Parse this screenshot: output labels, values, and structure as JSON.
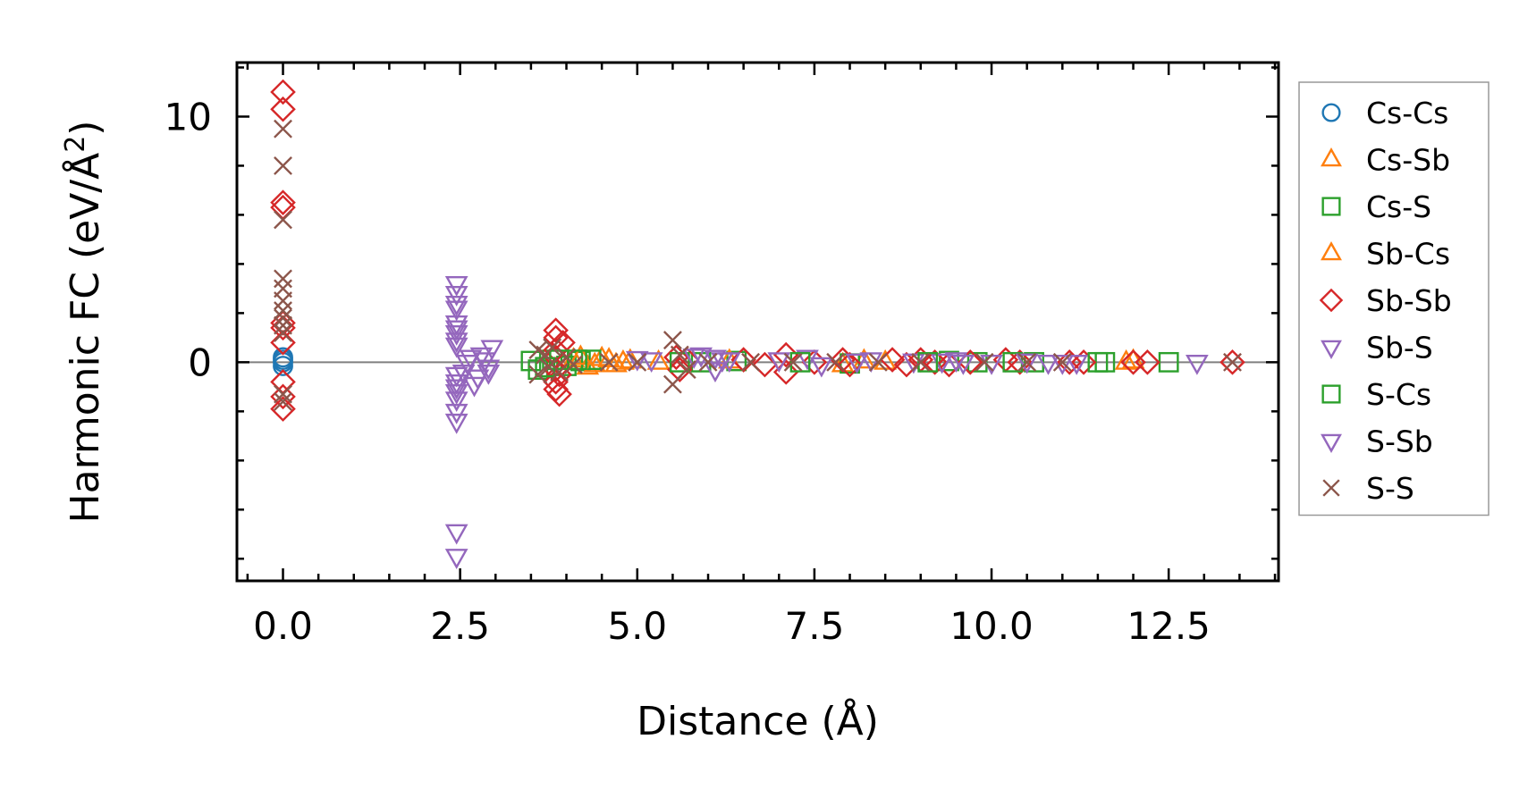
{
  "chart_data": {
    "type": "scatter",
    "title": "",
    "xlabel": "Distance (Å)",
    "ylabel": "Harmonic FC (eV/Å²)",
    "ylabel_main": "Harmonic FC (eV/Å",
    "ylabel_sup": "2",
    "ylabel_close": ")",
    "xlim": [
      -0.65,
      14.05
    ],
    "ylim": [
      -8.9,
      12.2
    ],
    "xticks": [
      0.0,
      2.5,
      5.0,
      7.5,
      10.0,
      12.5
    ],
    "xtick_labels": [
      "0.0",
      "2.5",
      "5.0",
      "7.5",
      "10.0",
      "12.5"
    ],
    "yticks": [
      0,
      10
    ],
    "ytick_labels": [
      "0",
      "10"
    ],
    "x_minor_step": 0.5,
    "y_minor_step": 2,
    "reference_line_y": 0,
    "legend_position": "outside-right",
    "series": [
      {
        "name": "Cs-Cs",
        "marker": "circle",
        "color": "#1f77b4",
        "points": [
          [
            0,
            0.2
          ],
          [
            0,
            0
          ],
          [
            0,
            -0.15
          ],
          [
            0,
            0.1
          ]
        ]
      },
      {
        "name": "Cs-Sb",
        "marker": "triangle-up",
        "color": "#ff7f0e",
        "points": [
          [
            4.1,
            0.1
          ],
          [
            4.3,
            -0.2
          ],
          [
            4.5,
            0.15
          ],
          [
            4.7,
            -0.1
          ],
          [
            4.9,
            0.05
          ],
          [
            5.3,
            0
          ],
          [
            7.9,
            -0.1
          ],
          [
            8.2,
            0.05
          ],
          [
            11.9,
            0
          ],
          [
            12.0,
            0.05
          ]
        ]
      },
      {
        "name": "Cs-S",
        "marker": "square",
        "color": "#2ca02c",
        "points": [
          [
            3.6,
            -0.3
          ],
          [
            3.8,
            0.1
          ],
          [
            4.0,
            -0.15
          ],
          [
            4.2,
            0.05
          ],
          [
            4.35,
            0.1
          ],
          [
            5.9,
            0
          ],
          [
            6.4,
            0.05
          ],
          [
            8.0,
            -0.05
          ],
          [
            9.4,
            0.05
          ],
          [
            9.8,
            0
          ],
          [
            10.6,
            0
          ],
          [
            11.6,
            0
          ],
          [
            12.5,
            0
          ]
        ]
      },
      {
        "name": "Sb-Cs",
        "marker": "triangle-up",
        "color": "#ff7f0e",
        "points": [
          [
            4.2,
            0.2
          ],
          [
            4.4,
            -0.1
          ],
          [
            4.6,
            0.1
          ],
          [
            4.8,
            0
          ],
          [
            6.3,
            0.05
          ],
          [
            8.5,
            0
          ]
        ]
      },
      {
        "name": "Sb-Sb",
        "marker": "diamond",
        "color": "#d62728",
        "points": [
          [
            0,
            11.0
          ],
          [
            0,
            10.3
          ],
          [
            0,
            6.5
          ],
          [
            0,
            6.3
          ],
          [
            0,
            1.6
          ],
          [
            0,
            1.4
          ],
          [
            0,
            0.8
          ],
          [
            0,
            -0.8
          ],
          [
            0,
            -1.4
          ],
          [
            0,
            -1.9
          ],
          [
            3.85,
            1.3
          ],
          [
            3.85,
            1.0
          ],
          [
            3.85,
            0.5
          ],
          [
            3.85,
            0.2
          ],
          [
            3.85,
            -0.3
          ],
          [
            3.85,
            -0.8
          ],
          [
            3.85,
            -1.1
          ],
          [
            3.9,
            -1.3
          ],
          [
            3.95,
            0.8
          ],
          [
            3.9,
            -0.5
          ],
          [
            5.55,
            0.2
          ],
          [
            5.6,
            -0.3
          ],
          [
            5.7,
            0.1
          ],
          [
            6.5,
            0.1
          ],
          [
            6.8,
            -0.1
          ],
          [
            7.1,
            0.3
          ],
          [
            7.1,
            -0.4
          ],
          [
            7.5,
            0
          ],
          [
            7.9,
            0.1
          ],
          [
            8.0,
            -0.1
          ],
          [
            8.6,
            0.1
          ],
          [
            8.8,
            -0.1
          ],
          [
            9.0,
            0.1
          ],
          [
            9.2,
            0
          ],
          [
            9.4,
            -0.1
          ],
          [
            9.7,
            0
          ],
          [
            10.2,
            0.1
          ],
          [
            10.4,
            0
          ],
          [
            11.1,
            0
          ],
          [
            11.3,
            0
          ],
          [
            12.0,
            0
          ],
          [
            12.2,
            0
          ],
          [
            13.4,
            0
          ]
        ]
      },
      {
        "name": "Sb-S",
        "marker": "triangle-down",
        "color": "#9467bd",
        "points": [
          [
            2.45,
            2.8
          ],
          [
            2.45,
            2.2
          ],
          [
            2.45,
            1.6
          ],
          [
            2.45,
            1.2
          ],
          [
            2.45,
            0.7
          ],
          [
            2.45,
            -0.5
          ],
          [
            2.45,
            -1.2
          ],
          [
            2.45,
            -2.0
          ],
          [
            2.45,
            -6.9
          ],
          [
            2.45,
            -7.9
          ],
          [
            2.6,
            0
          ],
          [
            2.7,
            -0.9
          ],
          [
            2.8,
            0.3
          ],
          [
            2.9,
            -0.2
          ],
          [
            2.95,
            0.6
          ],
          [
            5.0,
            0.15
          ],
          [
            5.2,
            0.1
          ],
          [
            5.9,
            0.3
          ],
          [
            6.1,
            0.2
          ],
          [
            6.1,
            -0.3
          ],
          [
            6.3,
            0.1
          ],
          [
            7.4,
            0.2
          ],
          [
            7.6,
            -0.1
          ],
          [
            8.3,
            0.1
          ],
          [
            8.9,
            0.05
          ],
          [
            9.3,
            0.05
          ],
          [
            9.5,
            0.1
          ],
          [
            10.0,
            0
          ],
          [
            10.8,
            0
          ],
          [
            11.0,
            0
          ],
          [
            12.9,
            0
          ]
        ]
      },
      {
        "name": "S-Cs",
        "marker": "square",
        "color": "#2ca02c",
        "points": [
          [
            3.5,
            0.05
          ],
          [
            3.7,
            -0.2
          ],
          [
            3.9,
            0.1
          ],
          [
            4.15,
            0.1
          ],
          [
            5.6,
            0
          ],
          [
            7.3,
            0
          ],
          [
            9.1,
            0
          ],
          [
            10.3,
            0
          ],
          [
            11.5,
            0
          ]
        ]
      },
      {
        "name": "S-Sb",
        "marker": "triangle-down",
        "color": "#9467bd",
        "points": [
          [
            2.45,
            3.2
          ],
          [
            2.45,
            2.4
          ],
          [
            2.45,
            1.4
          ],
          [
            2.45,
            0.9
          ],
          [
            2.45,
            -0.8
          ],
          [
            2.45,
            -1.5
          ],
          [
            2.45,
            -2.4
          ],
          [
            2.45,
            -1.0
          ],
          [
            2.55,
            -0.4
          ],
          [
            2.65,
            0.2
          ],
          [
            2.75,
            -0.6
          ],
          [
            2.85,
            0.1
          ],
          [
            2.9,
            -0.4
          ],
          [
            5.8,
            0.25
          ],
          [
            6.2,
            0.1
          ],
          [
            7.0,
            0.1
          ],
          [
            8.1,
            0.05
          ],
          [
            9.6,
            0
          ],
          [
            10.5,
            0.05
          ],
          [
            11.2,
            0
          ]
        ]
      },
      {
        "name": "S-S",
        "marker": "x",
        "color": "#8c564b",
        "points": [
          [
            0,
            9.5
          ],
          [
            0,
            8.0
          ],
          [
            0,
            5.8
          ],
          [
            0,
            3.4
          ],
          [
            0,
            3.0
          ],
          [
            0,
            2.5
          ],
          [
            0,
            2.1
          ],
          [
            0,
            1.8
          ],
          [
            0,
            1.5
          ],
          [
            0,
            1.2
          ],
          [
            0,
            -1.3
          ],
          [
            0,
            -1.6
          ],
          [
            3.6,
            0.5
          ],
          [
            3.6,
            -0.5
          ],
          [
            3.7,
            0.3
          ],
          [
            3.75,
            -0.2
          ],
          [
            3.8,
            0.6
          ],
          [
            3.9,
            -0.4
          ],
          [
            4.0,
            0.2
          ],
          [
            4.1,
            -0.1
          ],
          [
            4.6,
            0
          ],
          [
            5.0,
            0
          ],
          [
            5.5,
            0.9
          ],
          [
            5.5,
            -0.9
          ],
          [
            5.6,
            0.3
          ],
          [
            5.7,
            -0.3
          ],
          [
            6.0,
            0
          ],
          [
            6.6,
            0
          ],
          [
            7.2,
            0
          ],
          [
            7.8,
            0
          ],
          [
            8.4,
            0
          ],
          [
            9.0,
            0
          ],
          [
            9.9,
            0
          ],
          [
            10.5,
            0
          ],
          [
            11.0,
            0
          ],
          [
            13.4,
            0
          ]
        ]
      }
    ]
  }
}
